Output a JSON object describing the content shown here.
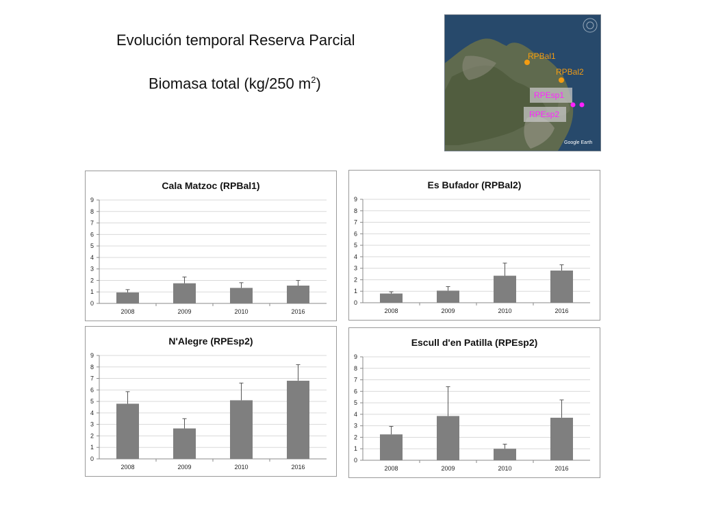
{
  "title": {
    "line1": "Evolución temporal Reserva Parcial",
    "line2_main": "Biomasa total (kg/250 m",
    "line2_sup": "2",
    "line2_end": ")"
  },
  "map": {
    "attribution": "Google Earth",
    "sites": [
      {
        "label": "RPBal1",
        "color": "#f39c12"
      },
      {
        "label": "RPBal2",
        "color": "#f39c12"
      },
      {
        "label": "RPEsp1",
        "color": "#ff22ff"
      },
      {
        "label": "RPEsp2",
        "color": "#ff22ff"
      }
    ]
  },
  "colors": {
    "bar": "#7f7f7f",
    "grid": "#d9d9d9",
    "axis": "#888888"
  },
  "chart_data": [
    {
      "type": "bar",
      "title": "Cala Matzoc (RPBal1)",
      "categories": [
        "2008",
        "2009",
        "2010",
        "2016"
      ],
      "values": [
        0.95,
        1.75,
        1.35,
        1.55
      ],
      "errors": [
        0.25,
        0.55,
        0.45,
        0.45
      ],
      "ylim": [
        0,
        9
      ],
      "yticks": [
        "0",
        "1",
        "2",
        "3",
        "4",
        "5",
        "6",
        "7",
        "8",
        "9"
      ],
      "grid": true
    },
    {
      "type": "bar",
      "title": "Es Bufador (RPBal2)",
      "categories": [
        "2008",
        "2009",
        "2010",
        "2016"
      ],
      "values": [
        0.8,
        1.05,
        2.35,
        2.8
      ],
      "errors": [
        0.15,
        0.35,
        1.1,
        0.5
      ],
      "ylim": [
        0,
        9
      ],
      "yticks": [
        "0",
        "1",
        "2",
        "3",
        "4",
        "5",
        "6",
        "7",
        "8",
        "9"
      ],
      "grid": true
    },
    {
      "type": "bar",
      "title": "N'Alegre (RPEsp2)",
      "categories": [
        "2008",
        "2009",
        "2010",
        "2016"
      ],
      "values": [
        4.8,
        2.65,
        5.1,
        6.8
      ],
      "errors": [
        1.05,
        0.85,
        1.5,
        1.4
      ],
      "ylim": [
        0,
        9
      ],
      "yticks": [
        "0",
        "1",
        "2",
        "3",
        "4",
        "5",
        "6",
        "7",
        "8",
        "9"
      ],
      "grid": true
    },
    {
      "type": "bar",
      "title": "Escull d'en Patilla (RPEsp2)",
      "categories": [
        "2008",
        "2009",
        "2010",
        "2016"
      ],
      "values": [
        2.25,
        3.85,
        1.0,
        3.7
      ],
      "errors": [
        0.7,
        2.55,
        0.4,
        1.55
      ],
      "ylim": [
        0,
        9
      ],
      "yticks": [
        "0",
        "1",
        "2",
        "3",
        "4",
        "5",
        "6",
        "7",
        "8",
        "9"
      ],
      "grid": true
    }
  ]
}
